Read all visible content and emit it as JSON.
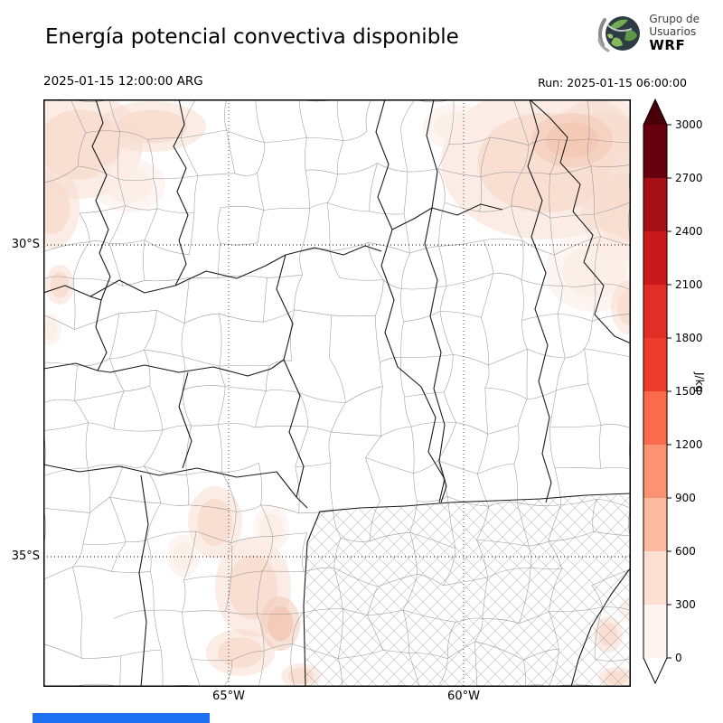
{
  "header": {
    "title": "Energía potencial convectiva disponible",
    "valid_time": "2025-01-15 12:00:00 ARG",
    "run_label": "Run: 2025-01-15 06:00:00",
    "logo": {
      "line1": "Grupo de",
      "line2": "Usuarios",
      "line3": "WRF"
    }
  },
  "map": {
    "lat_labels": [
      "30°S",
      "35°S"
    ],
    "lon_labels": [
      "65°W",
      "60°W"
    ],
    "shade_faint": "#fcede6",
    "shade_light": "#f8dccf",
    "shade_mid": "#f3c9b5"
  },
  "colorbar": {
    "unit": "J/kg",
    "tick_labels": [
      "3000",
      "2700",
      "2400",
      "2100",
      "1800",
      "1500",
      "1200",
      "900",
      "600",
      "300",
      "0"
    ],
    "segments_top_to_bottom": [
      "#67000d",
      "#a50f15",
      "#cb181d",
      "#e22e27",
      "#ef3b2c",
      "#fb6a4a",
      "#fc9272",
      "#fcbba1",
      "#fee0d2",
      "#fff5f0"
    ],
    "over_color": "#4a0009",
    "under_color": "#ffffff"
  },
  "misc": {
    "bottom_bar_color": "#1b6ff0"
  }
}
